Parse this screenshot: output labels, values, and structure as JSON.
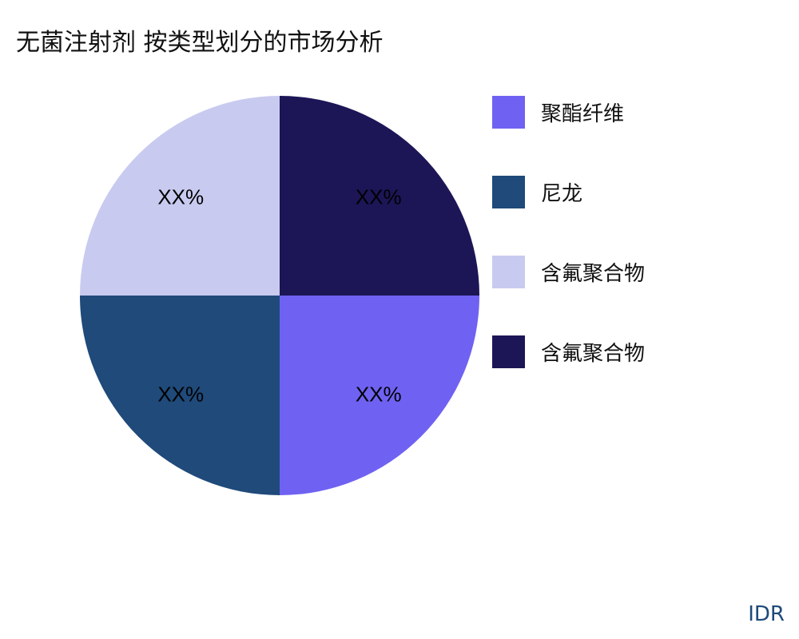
{
  "chart_data": {
    "type": "pie",
    "title": "无菌注射剂 按类型划分的市场分析",
    "legend_position": "right",
    "slices": [
      {
        "name": "聚酯纤维",
        "value": 25,
        "label": "XX%",
        "color": "#6f62f2"
      },
      {
        "name": "尼龙",
        "value": 25,
        "label": "XX%",
        "color": "#1f4a7a"
      },
      {
        "name": "含氟聚合物",
        "value": 25,
        "label": "XX%",
        "color": "#c8caf0"
      },
      {
        "name": "含氟聚合物",
        "value": 25,
        "label": "XX%",
        "color": "#1c1657"
      }
    ]
  },
  "brand": "IDR"
}
